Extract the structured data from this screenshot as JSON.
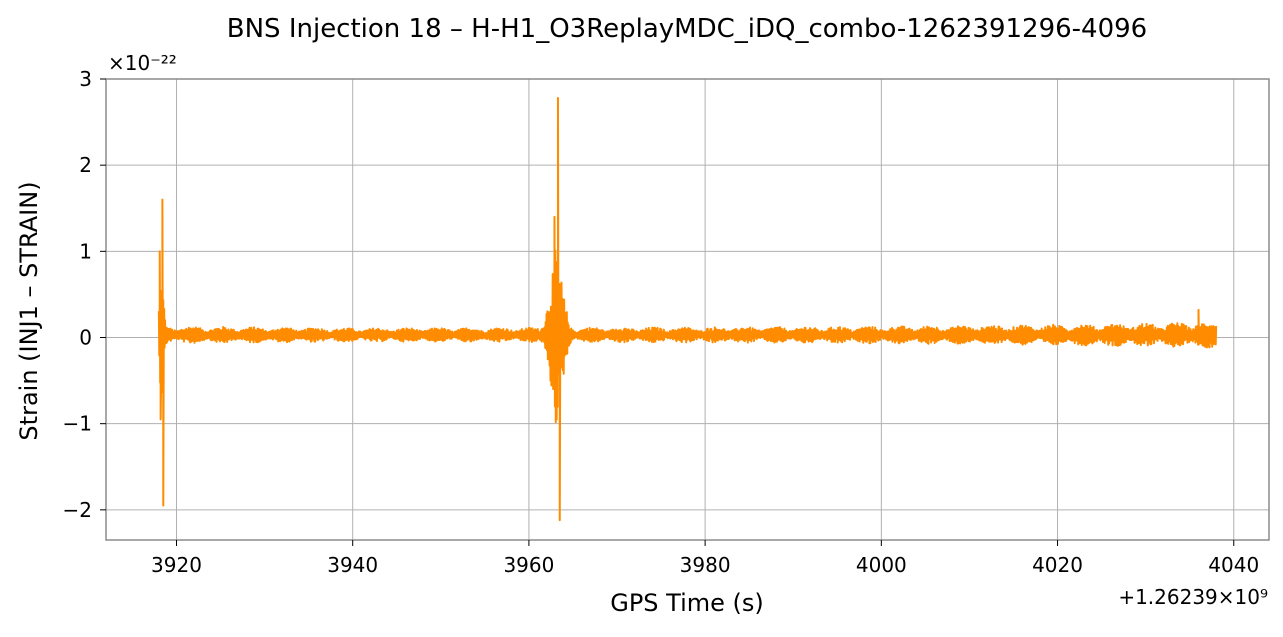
{
  "chart_data": {
    "type": "line",
    "title": "BNS Injection 18 – H-H1_O3ReplayMDC_iDQ_combo-1262391296-4096",
    "xlabel": "GPS Time (s)",
    "ylabel": "Strain (INJ1 – STRAIN)",
    "xlim": [
      3912,
      4044
    ],
    "ylim": [
      -2.35,
      3.0
    ],
    "x_offset_label": "+1.26239×10⁹",
    "y_scale_label": "×10⁻²²",
    "x_ticks": [
      3920,
      3940,
      3960,
      3980,
      4000,
      4020,
      4040
    ],
    "x_tick_labels": [
      "3920",
      "3940",
      "3960",
      "3980",
      "4000",
      "4020",
      "4040"
    ],
    "y_ticks": [
      -2,
      -1,
      0,
      1,
      2,
      3
    ],
    "y_tick_labels": [
      "−2",
      "−1",
      "0",
      "1",
      "2",
      "3"
    ],
    "grid": true,
    "series": [
      {
        "color": "#ff8c00",
        "x_range": [
          3918,
          4038
        ],
        "noise_envelope": [
          [
            3918,
            0.1
          ],
          [
            3940,
            0.08
          ],
          [
            3980,
            0.09
          ],
          [
            4000,
            0.1
          ],
          [
            4020,
            0.12
          ],
          [
            4038,
            0.15
          ]
        ],
        "features": [
          {
            "x": 3918.1,
            "y": 1.0
          },
          {
            "x": 3918.2,
            "y": -0.95
          },
          {
            "x": 3918.4,
            "y": 1.6
          },
          {
            "x": 3918.5,
            "y": -1.95
          },
          {
            "x": 3962.9,
            "y": 1.4
          },
          {
            "x": 3963.3,
            "y": 2.78
          },
          {
            "x": 3963.5,
            "y": -2.12
          },
          {
            "x": 4036.0,
            "y": 0.32
          }
        ]
      }
    ]
  }
}
